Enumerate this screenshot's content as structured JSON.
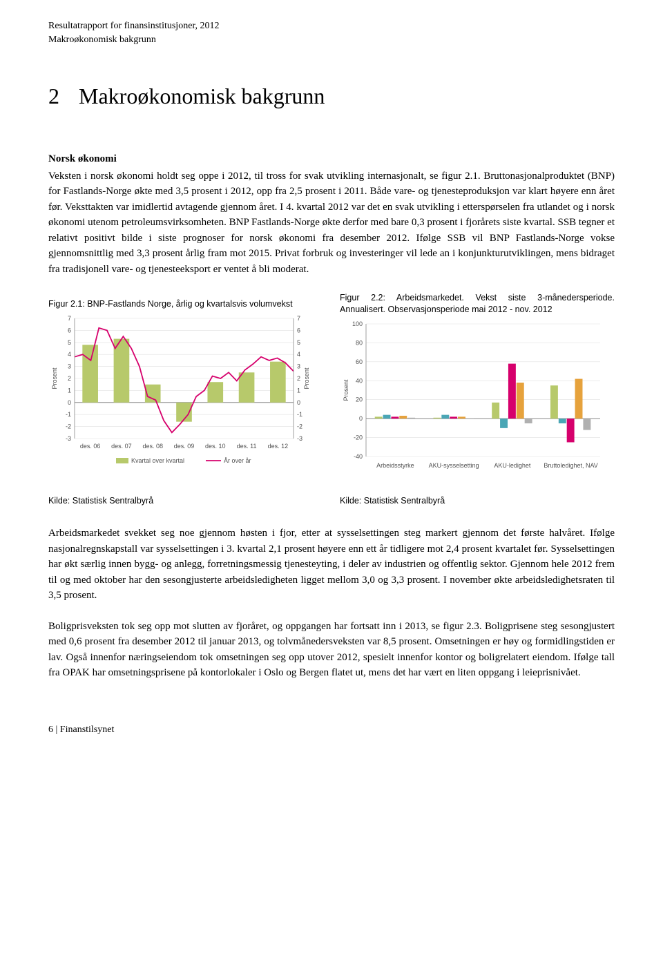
{
  "header": {
    "line1": "Resultatrapport for finansinstitusjoner, 2012",
    "line2": "Makroøkonomisk bakgrunn"
  },
  "section": {
    "number": "2",
    "title": "Makroøkonomisk bakgrunn"
  },
  "subheading": "Norsk økonomi",
  "para1": "Veksten i norsk økonomi holdt seg oppe i 2012, til tross for svak utvikling internasjonalt, se figur 2.1. Bruttonasjonalproduktet (BNP) for Fastlands-Norge økte med 3,5 prosent i 2012, opp fra 2,5 prosent i 2011. Både vare- og tjenesteproduksjon var klart høyere enn året før. Veksttakten var imidlertid avtagende gjennom året. I 4. kvartal 2012 var det en svak utvikling i etterspørselen fra utlandet og i norsk økonomi utenom petroleumsvirksomheten. BNP Fastlands-Norge økte derfor med bare 0,3 prosent i fjorårets siste kvartal. SSB tegner et relativt positivt bilde i siste prognoser for norsk økonomi fra desember 2012. Ifølge SSB vil BNP Fastlands-Norge vokse gjennomsnittlig med 3,3 prosent årlig fram mot 2015. Privat forbruk og investeringer vil lede an i konjunkturutviklingen, mens bidraget fra tradisjonell vare- og tjenesteeksport er ventet å bli moderat.",
  "fig1": {
    "caption": "Figur 2.1: BNP-Fastlands Norge, årlig og kvartalsvis volumvekst",
    "source": "Kilde: Statistisk Sentralbyrå",
    "type": "line-bar",
    "ylabel": "Prosent",
    "ylim": [
      -3,
      7
    ],
    "ytick_step": 1,
    "x_labels": [
      "des. 06",
      "des. 07",
      "des. 08",
      "des. 09",
      "des. 10",
      "des. 11",
      "des. 12"
    ],
    "line_color": "#d6006c",
    "line_values": [
      3.8,
      4.0,
      3.5,
      6.2,
      6.0,
      4.5,
      5.5,
      4.5,
      3.0,
      0.5,
      0.2,
      -1.5,
      -2.5,
      -1.8,
      -1.0,
      0.5,
      1.0,
      2.2,
      2.0,
      2.5,
      1.8,
      2.7,
      3.2,
      3.8,
      3.5,
      3.7,
      3.3,
      2.6
    ],
    "bar_color": "#b7c96b",
    "bar_values": [
      4.8,
      5.3,
      1.5,
      -1.6,
      1.7,
      2.5,
      3.4
    ],
    "legend": {
      "bar": "Kvartal over kvartal",
      "line": "År over år"
    },
    "axis_color": "#888888",
    "grid_color": "#e0e0e0",
    "label_fontsize": 9,
    "line_width": 1.8,
    "bar_width": 0.5
  },
  "fig2": {
    "caption": "Figur 2.2: Arbeidsmarkedet. Vekst siste 3-månedersperiode. Annualisert. Observasjonsperiode mai 2012 - nov. 2012",
    "source": "Kilde: Statistisk Sentralbyrå",
    "type": "grouped-bar",
    "ylabel": "Prosent",
    "ylim": [
      -40,
      100
    ],
    "ytick_step": 20,
    "categories": [
      "Arbeidsstyrke",
      "AKU-sysselsetting",
      "AKU-ledighet",
      "Bruttoledighet, NAV"
    ],
    "series_colors": [
      "#b7c96b",
      "#4aa6b5",
      "#d6006c",
      "#e6a23c",
      "#b0b0b0"
    ],
    "group_values": [
      [
        2,
        4,
        2,
        3,
        1
      ],
      [
        1,
        4,
        2,
        2,
        0
      ],
      [
        17,
        -10,
        58,
        38,
        -5
      ],
      [
        35,
        -5,
        -25,
        42,
        -12
      ]
    ],
    "axis_color": "#888888",
    "grid_color": "#e0e0e0",
    "label_fontsize": 9,
    "bar_width": 0.14
  },
  "para2": "Arbeidsmarkedet svekket seg noe gjennom høsten i fjor, etter at sysselsettingen steg markert gjennom det første halvåret. Ifølge nasjonalregnskapstall var sysselsettingen i 3. kvartal 2,1 prosent høyere enn ett år tidligere mot 2,4 prosent kvartalet før. Sysselsettingen har økt særlig innen bygg- og anlegg, forretningsmessig tjenesteyting, i deler av industrien og offentlig sektor. Gjennom hele 2012 frem til og med oktober har den sesongjusterte arbeidsledigheten ligget mellom 3,0 og 3,3 prosent.  I november økte arbeidsledighetsraten til 3,5 prosent.",
  "para3": "Boligprisveksten tok seg opp mot slutten av fjoråret, og oppgangen har fortsatt inn i 2013, se figur 2.3. Boligprisene steg sesongjustert med 0,6 prosent fra desember 2012 til januar 2013, og tolvmånedersveksten var 8,5 prosent. Omsetningen er høy og formidlingstiden er lav. Også innenfor næringseiendom tok omsetningen seg opp utover 2012, spesielt innenfor kontor og boligrelatert eiendom. Ifølge tall fra OPAK har omsetningsprisene på kontorlokaler i Oslo og Bergen flatet ut, mens det har vært en liten oppgang i leieprisnivået.",
  "footer": "6 | Finanstilsynet"
}
